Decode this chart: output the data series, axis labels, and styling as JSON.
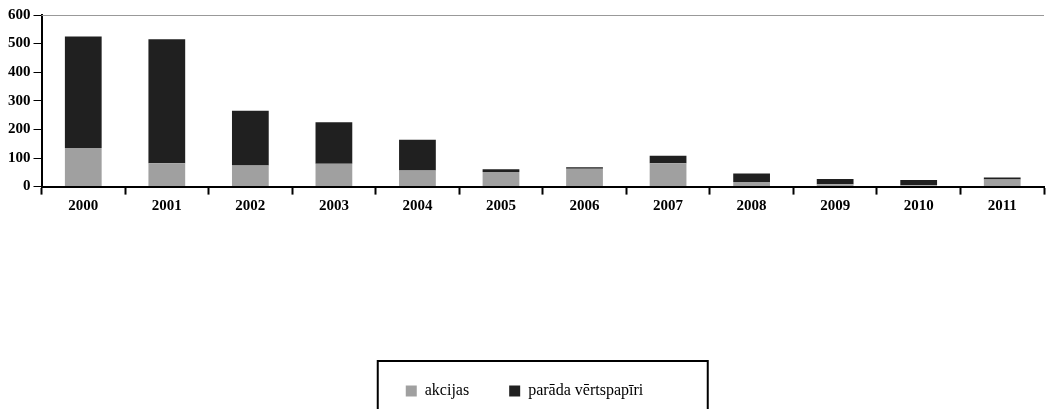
{
  "chart_data": {
    "type": "bar",
    "stacked": true,
    "categories": [
      "2000",
      "2001",
      "2002",
      "2003",
      "2004",
      "2005",
      "2006",
      "2007",
      "2008",
      "2009",
      "2010",
      "2011"
    ],
    "series": [
      {
        "name": "akcijas",
        "color": "#a0a0a0",
        "values": [
          135,
          82,
          74,
          80,
          56,
          51,
          62,
          82,
          16,
          8,
          5,
          25
        ]
      },
      {
        "name": "parāda vērtspapīri",
        "color": "#202020",
        "values": [
          390,
          433,
          191,
          145,
          108,
          10,
          6,
          26,
          30,
          19,
          18,
          7
        ]
      }
    ],
    "ylim": [
      0,
      600
    ],
    "yticks": [
      0,
      100,
      200,
      300,
      400,
      500,
      600
    ],
    "grid": false,
    "legend": "bottom"
  }
}
